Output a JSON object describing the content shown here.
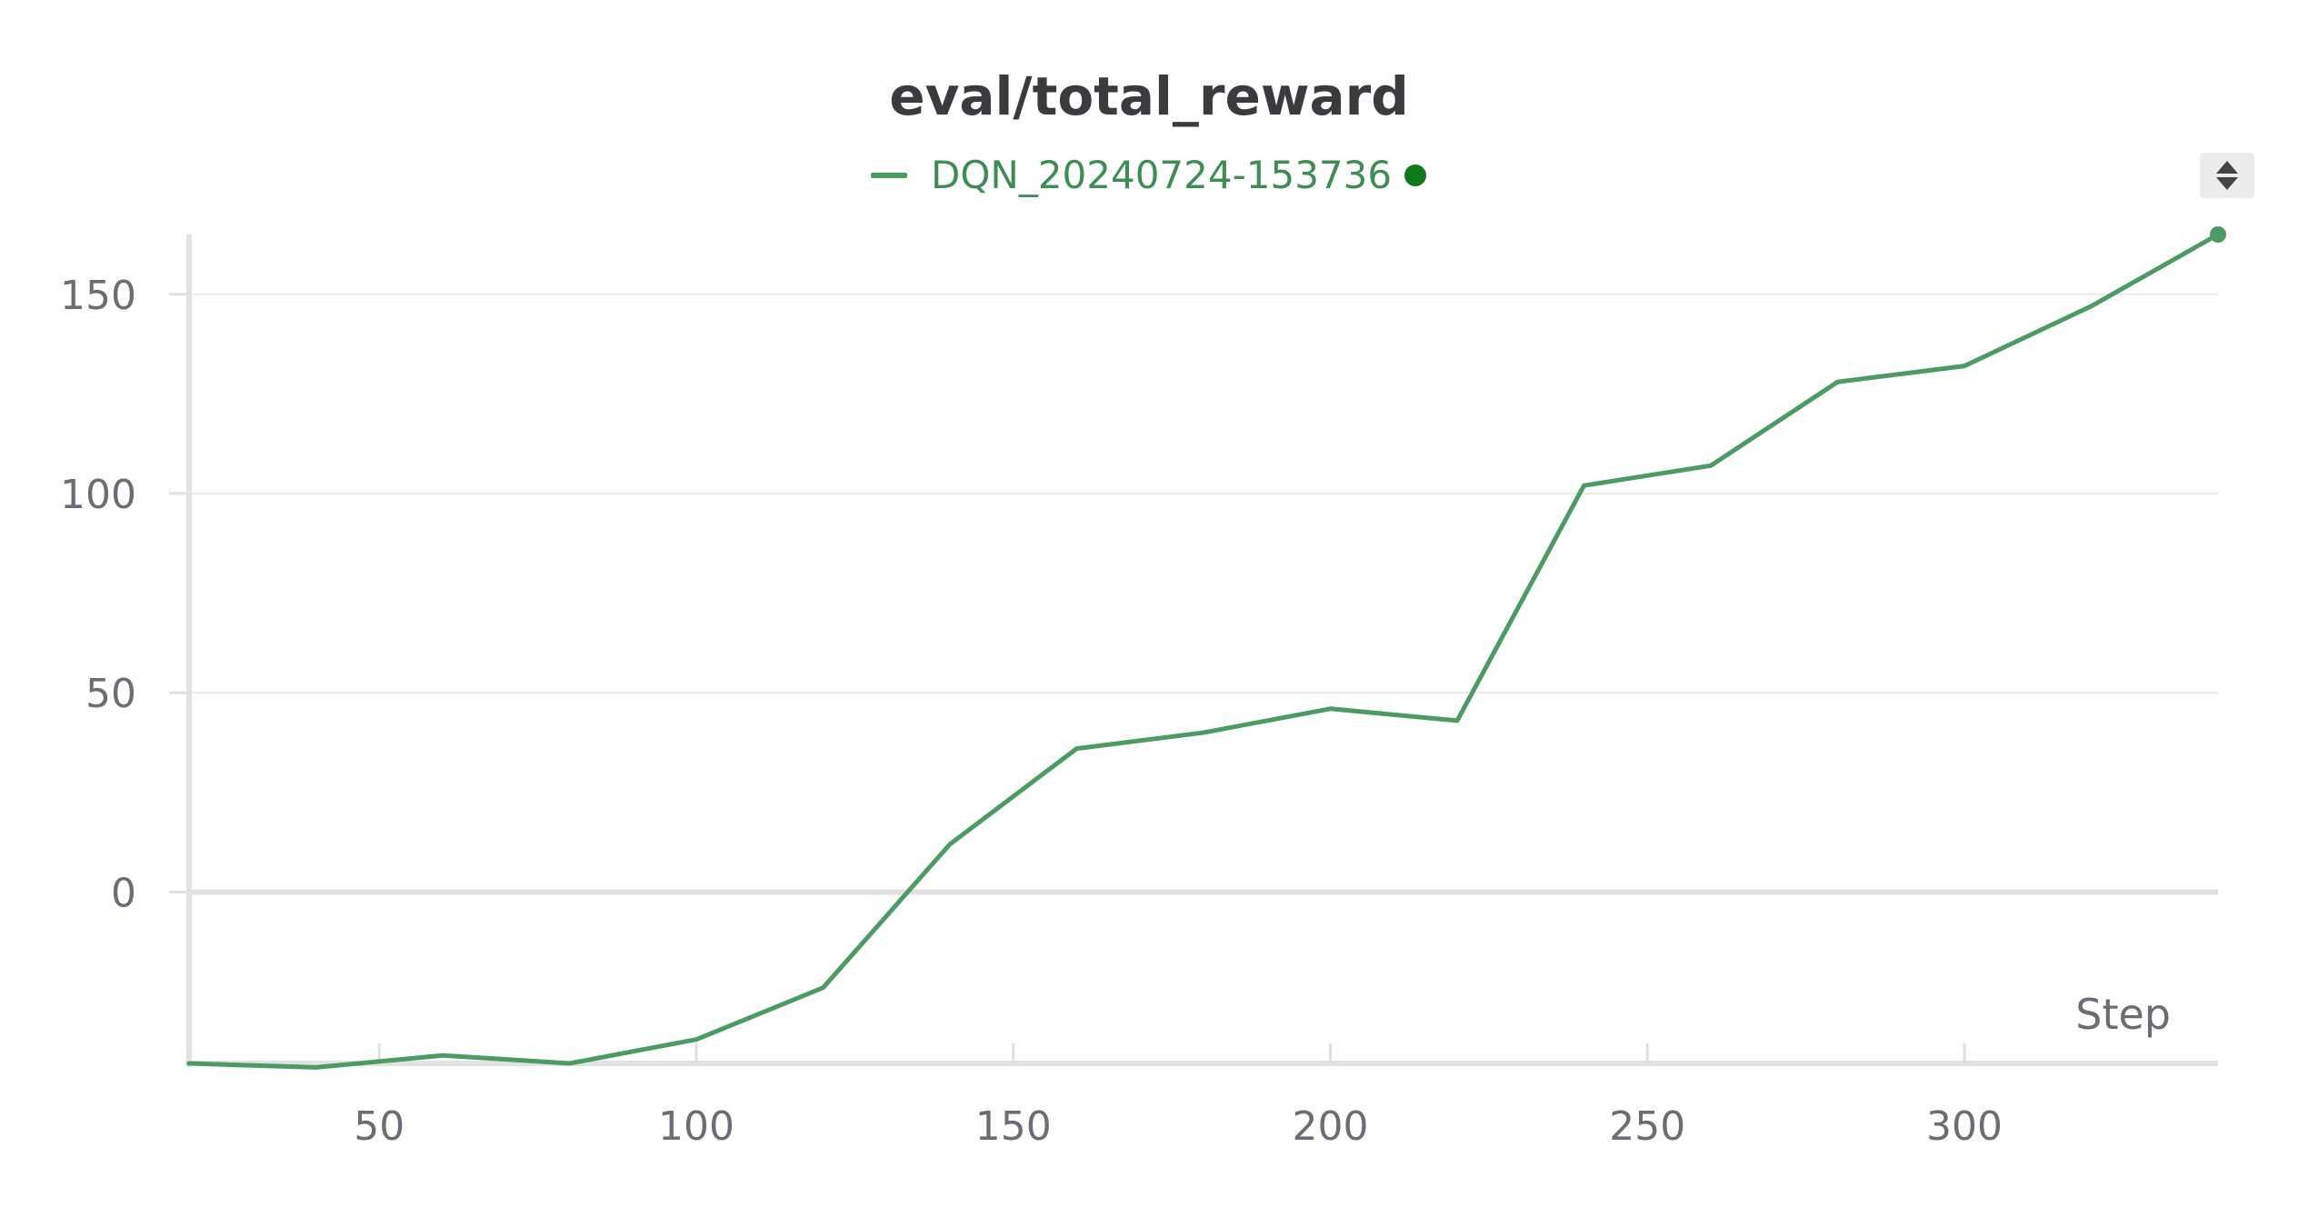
{
  "chart_data": {
    "type": "line",
    "title": "eval/total_reward",
    "xlabel": "Step",
    "ylabel": "",
    "xlim": [
      20,
      340
    ],
    "ylim": [
      -43,
      165
    ],
    "x_ticks": [
      50,
      100,
      150,
      200,
      250,
      300
    ],
    "y_ticks": [
      0,
      50,
      100,
      150
    ],
    "grid": true,
    "legend_position": "top-center",
    "series": [
      {
        "name": "DQN_20240724-153736",
        "color": "#4c9a64",
        "x": [
          20,
          40,
          60,
          80,
          100,
          120,
          140,
          160,
          180,
          200,
          220,
          240,
          260,
          280,
          300,
          320,
          340
        ],
        "values": [
          -43,
          -44,
          -41,
          -43,
          -37,
          -24,
          12,
          36,
          40,
          46,
          43,
          102,
          107,
          128,
          132,
          147,
          165
        ]
      }
    ]
  }
}
